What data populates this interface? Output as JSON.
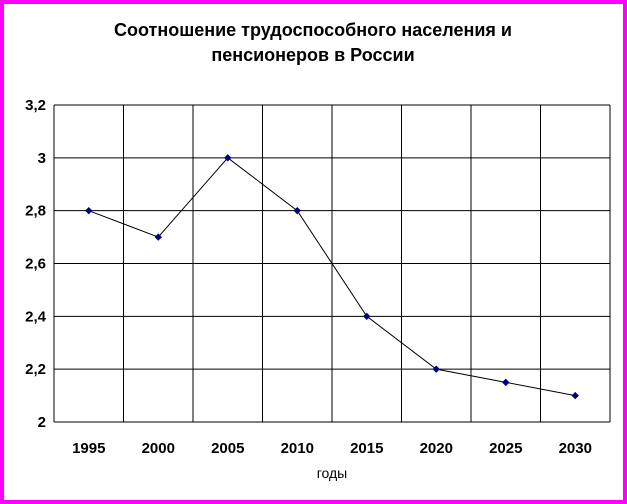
{
  "chart_data": {
    "type": "line",
    "title_lines": [
      "Соотношение трудоспособного населения и",
      "пенсионеров в России"
    ],
    "xlabel": "годы",
    "ylabel": "",
    "categories": [
      "1995",
      "2000",
      "2005",
      "2010",
      "2015",
      "2020",
      "2025",
      "2030"
    ],
    "series": [
      {
        "values": [
          2.8,
          2.7,
          3.0,
          2.8,
          2.4,
          2.2,
          2.15,
          2.1
        ]
      }
    ],
    "ylim": [
      2,
      3.2
    ],
    "y_ticks": [
      2,
      2.2,
      2.4,
      2.6,
      2.8,
      3,
      3.2
    ],
    "y_tick_labels": [
      "2",
      "2,2",
      "2,4",
      "2,6",
      "2,8",
      "3",
      "3,2"
    ],
    "grid": true,
    "legend": "none",
    "colors": {
      "frame": "#ff00ff",
      "background": "#ffffff",
      "line": "#000000",
      "marker": "#000080",
      "grid": "#000000"
    }
  }
}
